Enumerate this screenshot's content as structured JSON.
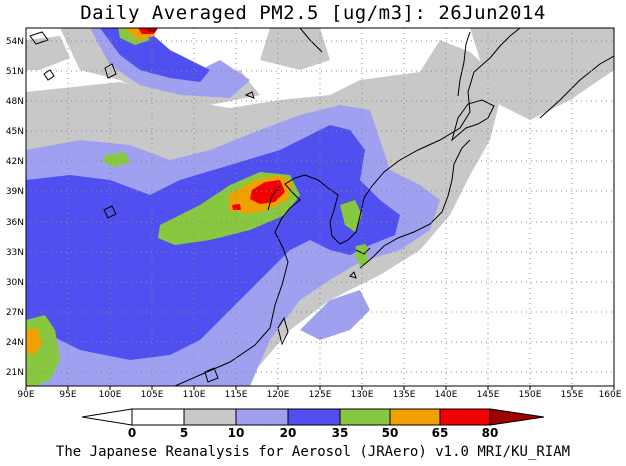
{
  "title": "Daily Averaged PM2.5 [ug/m3]: 26Jun2014",
  "footer": "The Japanese Reanalysis for Aerosol (JRAero) v1.0 MRI/KU_RIAM",
  "map": {
    "lon_range": [
      90,
      160
    ],
    "lat_range": [
      20,
      55
    ],
    "lon_ticks": [
      "90E",
      "95E",
      "100E",
      "105E",
      "110E",
      "115E",
      "120E",
      "125E",
      "130E",
      "135E",
      "140E",
      "145E",
      "150E",
      "155E",
      "160E"
    ],
    "lat_ticks": [
      "54N",
      "51N",
      "48N",
      "45N",
      "42N",
      "39N",
      "36N",
      "33N",
      "30N",
      "27N",
      "24N",
      "21N"
    ],
    "grid": "dotted"
  },
  "colorbar": {
    "labels": [
      "0",
      "5",
      "10",
      "20",
      "35",
      "50",
      "65",
      "80"
    ],
    "colors": [
      "#ffffff",
      "#c8c8c8",
      "#a0a0f0",
      "#5050f0",
      "#88c840",
      "#f0a000",
      "#f00000",
      "#a00000"
    ]
  }
}
